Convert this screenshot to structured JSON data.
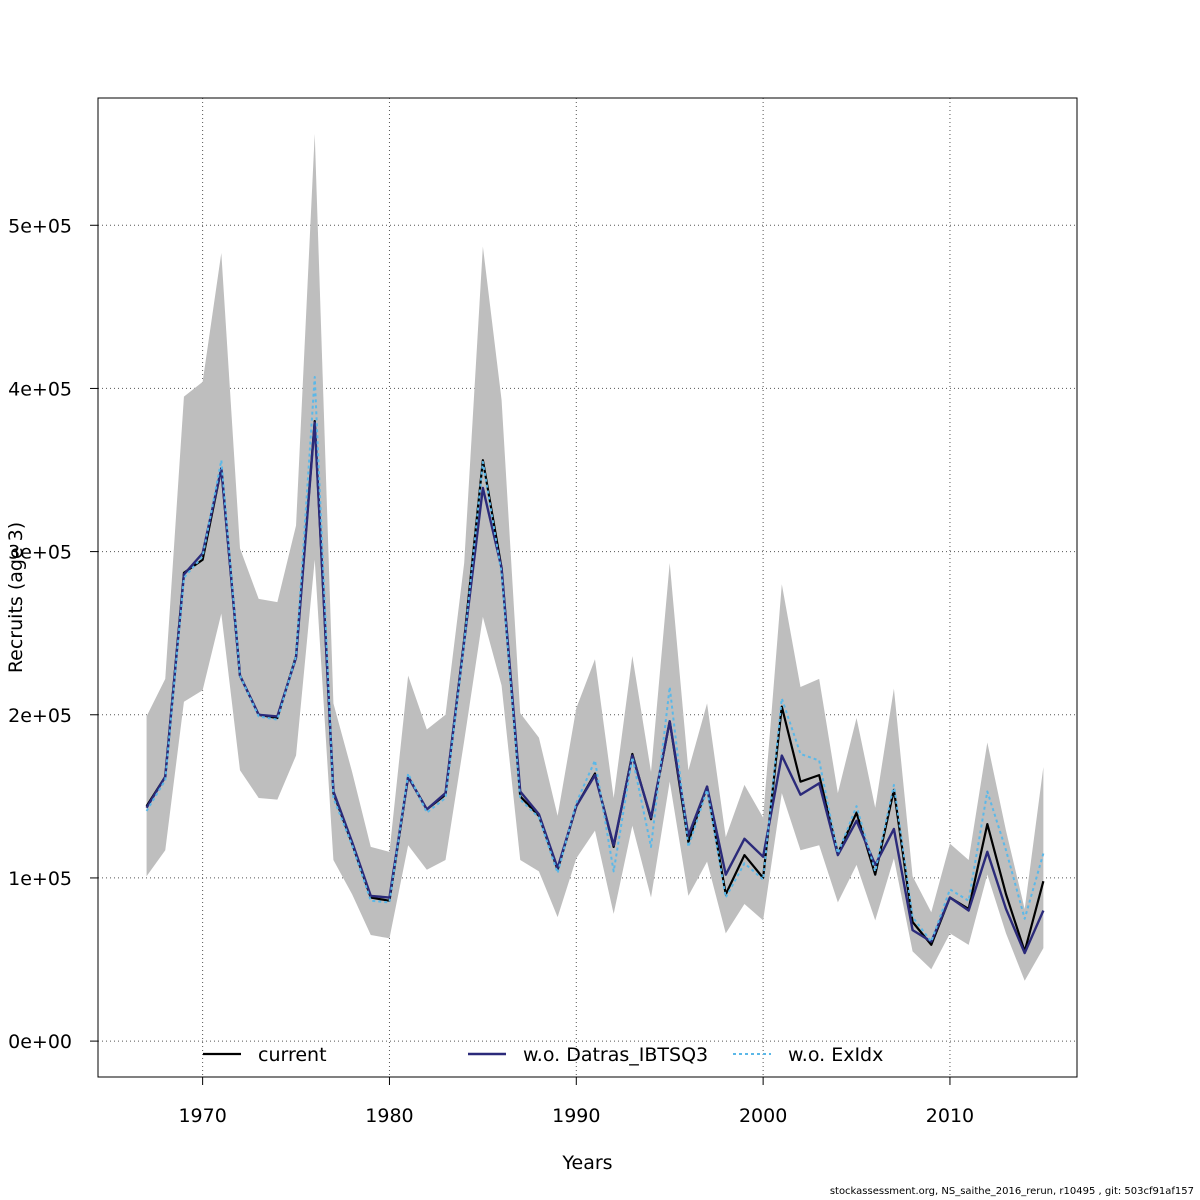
{
  "footer": "stockassessment.org, NS_saithe_2016_rerun, r10495 , git: 503cf91af157",
  "chart_data": {
    "type": "line",
    "title": "",
    "xlabel": "Years",
    "ylabel": "Recruits (age 3)",
    "xlim": [
      1964.4,
      2016.8
    ],
    "ylim": [
      -22000,
      578000
    ],
    "xticks": [
      1970,
      1980,
      1990,
      2000,
      2010
    ],
    "yticks": [
      0,
      100000,
      200000,
      300000,
      400000,
      500000
    ],
    "ytick_labels": [
      "0e+00",
      "1e+05",
      "2e+05",
      "3e+05",
      "4e+05",
      "5e+05"
    ],
    "grid": true,
    "legend_position": "bottom",
    "x": [
      1967,
      1968,
      1969,
      1970,
      1971,
      1972,
      1973,
      1974,
      1975,
      1976,
      1977,
      1978,
      1979,
      1980,
      1981,
      1982,
      1983,
      1984,
      1985,
      1986,
      1987,
      1988,
      1989,
      1990,
      1991,
      1992,
      1993,
      1994,
      1995,
      1996,
      1997,
      1998,
      1999,
      2000,
      2001,
      2002,
      2003,
      2004,
      2005,
      2006,
      2007,
      2008,
      2009,
      2010,
      2011,
      2012,
      2013,
      2014,
      2015
    ],
    "band": {
      "color": "#bebebe",
      "lower": [
        101000,
        117000,
        208000,
        215000,
        262000,
        166000,
        149000,
        148000,
        175000,
        295000,
        111000,
        90000,
        65000,
        63000,
        120000,
        105000,
        111000,
        184000,
        260000,
        218000,
        111000,
        104000,
        76000,
        112000,
        129000,
        78000,
        132000,
        88000,
        159000,
        89000,
        110000,
        66000,
        84000,
        74000,
        152000,
        117000,
        120000,
        85000,
        108000,
        74000,
        112000,
        55000,
        44000,
        66000,
        59000,
        102000,
        66000,
        37000,
        57000
      ],
      "upper": [
        199000,
        222000,
        395000,
        404000,
        483000,
        302000,
        271000,
        269000,
        316000,
        556000,
        207000,
        165000,
        119000,
        116000,
        224000,
        191000,
        200000,
        293000,
        487000,
        393000,
        201000,
        186000,
        138000,
        204000,
        234000,
        149000,
        236000,
        165000,
        293000,
        166000,
        207000,
        125000,
        157000,
        137000,
        280000,
        217000,
        222000,
        152000,
        198000,
        143000,
        216000,
        101000,
        79000,
        121000,
        111000,
        183000,
        129000,
        81000,
        168000
      ]
    },
    "series": [
      {
        "name": "current",
        "color": "#000000",
        "dash": "",
        "width": 2.2,
        "values": [
          144000,
          162000,
          287000,
          295000,
          351000,
          224000,
          200000,
          198000,
          236000,
          380000,
          152000,
          121000,
          88000,
          86000,
          162000,
          142000,
          151000,
          246000,
          356000,
          290000,
          150000,
          138000,
          105000,
          144000,
          164000,
          119000,
          176000,
          136000,
          196000,
          122000,
          156000,
          90000,
          114000,
          100000,
          205000,
          159000,
          163000,
          115000,
          140000,
          102000,
          154000,
          73000,
          59000,
          88000,
          81000,
          133000,
          90000,
          55000,
          98000
        ]
      },
      {
        "name": "w.o. Datras_IBTSQ3",
        "color": "#2b2a7a",
        "dash": "",
        "width": 2.4,
        "values": [
          143000,
          162000,
          286000,
          299000,
          351000,
          224000,
          200000,
          199000,
          235000,
          379000,
          153000,
          122000,
          89000,
          88000,
          162000,
          142000,
          152000,
          245000,
          339000,
          290000,
          153000,
          139000,
          106000,
          144000,
          163000,
          120000,
          175000,
          137000,
          196000,
          126000,
          156000,
          102000,
          124000,
          113000,
          175000,
          151000,
          158000,
          114000,
          135000,
          108000,
          130000,
          68000,
          61000,
          88000,
          80000,
          116000,
          81000,
          54000,
          80000
        ]
      },
      {
        "name": "w.o. ExIdx",
        "color": "#5bb8e8",
        "dash": "3,3",
        "width": 2.0,
        "values": [
          141000,
          160000,
          284000,
          297000,
          356000,
          224000,
          199000,
          197000,
          236000,
          407000,
          149000,
          120000,
          86000,
          85000,
          164000,
          140000,
          149000,
          244000,
          355000,
          287000,
          148000,
          137000,
          103000,
          146000,
          172000,
          104000,
          174000,
          119000,
          217000,
          119000,
          154000,
          88000,
          109000,
          99000,
          210000,
          176000,
          172000,
          115000,
          144000,
          104000,
          157000,
          76000,
          61000,
          93000,
          86000,
          153000,
          117000,
          75000,
          115000
        ]
      }
    ]
  }
}
